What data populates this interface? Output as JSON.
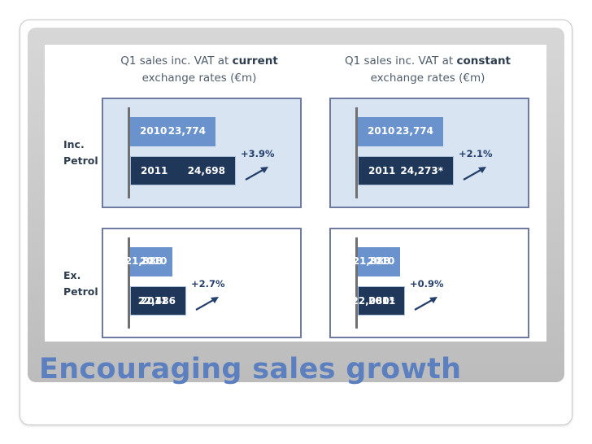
{
  "slide": {
    "title": "Encouraging sales growth"
  },
  "chart_data": {
    "type": "bar",
    "orientation": "horizontal",
    "columns": [
      {
        "title_pre": "Q1 sales inc. VAT at ",
        "title_emph": "current",
        "title_post": "exchange rates (€m)"
      },
      {
        "title_pre": "Q1 sales inc. VAT at ",
        "title_emph": "constant",
        "title_post": "exchange rates (€m)"
      }
    ],
    "rows": [
      {
        "label_line1": "Inc.",
        "label_line2": "Petrol"
      },
      {
        "label_line1": "Ex.",
        "label_line2": "Petrol"
      }
    ],
    "panels": [
      {
        "row": 0,
        "col": 0,
        "bars": [
          {
            "year": "2010",
            "value": 23774,
            "label": "23,774"
          },
          {
            "year": "2011",
            "value": 24698,
            "label": "24,698"
          }
        ],
        "growth": "+3.9%"
      },
      {
        "row": 0,
        "col": 1,
        "bars": [
          {
            "year": "2010",
            "value": 23774,
            "label": "23,774"
          },
          {
            "year": "2011",
            "value": 24273,
            "label": "24,273*"
          }
        ],
        "growth": "+2.1%"
      },
      {
        "row": 1,
        "col": 0,
        "bars": [
          {
            "year": "2010",
            "value": 21888,
            "label": "21,888"
          },
          {
            "year": "2011",
            "value": 22486,
            "label": "22,486"
          }
        ],
        "growth": "+2.7%"
      },
      {
        "row": 1,
        "col": 1,
        "bars": [
          {
            "year": "2010",
            "value": 21888,
            "label": "21,888"
          },
          {
            "year": "2011",
            "value": 22080,
            "label": "22,080*"
          }
        ],
        "growth": "+0.9%"
      }
    ],
    "colors": {
      "bar_2010": "#6a92cc",
      "bar_2011": "#1f3758",
      "title": "#5b7fbf"
    }
  }
}
